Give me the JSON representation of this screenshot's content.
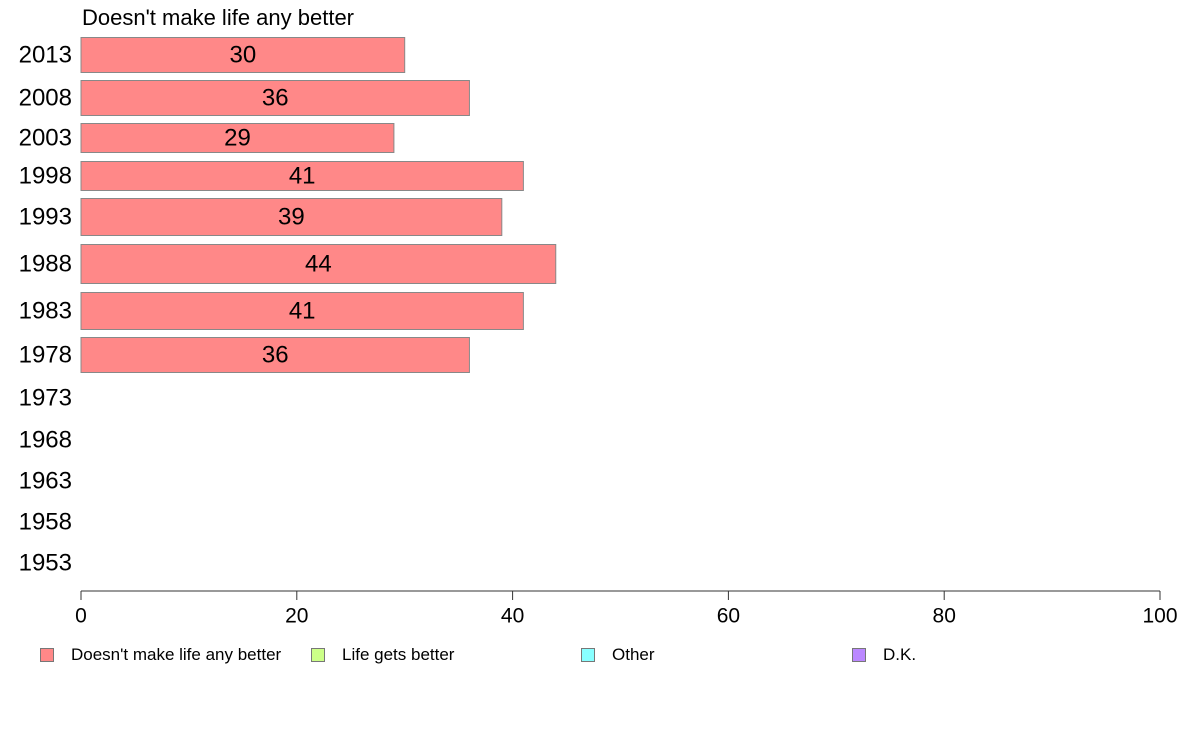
{
  "chart_data": {
    "type": "bar",
    "orientation": "horizontal",
    "title": "Doesn't make life any better",
    "categories": [
      "2013",
      "2008",
      "2003",
      "1998",
      "1993",
      "1988",
      "1983",
      "1978",
      "1973",
      "1968",
      "1963",
      "1958",
      "1953"
    ],
    "series": [
      {
        "name": "Doesn't make life any better",
        "color": "#ff8888",
        "values": [
          30,
          36,
          29,
          41,
          39,
          44,
          41,
          36,
          null,
          null,
          null,
          null,
          null
        ]
      },
      {
        "name": "Life gets better",
        "color": "#ccff88",
        "values": [
          null,
          null,
          null,
          null,
          null,
          null,
          null,
          null,
          null,
          null,
          null,
          null,
          null
        ]
      },
      {
        "name": "Other",
        "color": "#88ffff",
        "values": [
          null,
          null,
          null,
          null,
          null,
          null,
          null,
          null,
          null,
          null,
          null,
          null,
          null
        ]
      },
      {
        "name": "D.K.",
        "color": "#bb88ff",
        "values": [
          null,
          null,
          null,
          null,
          null,
          null,
          null,
          null,
          null,
          null,
          null,
          null,
          null
        ]
      }
    ],
    "xlim": [
      0,
      100
    ],
    "xticks": [
      "0",
      "20",
      "40",
      "60",
      "80",
      "100"
    ],
    "xlabel": "",
    "ylabel": "",
    "grid": false,
    "legend_position": "bottom"
  }
}
